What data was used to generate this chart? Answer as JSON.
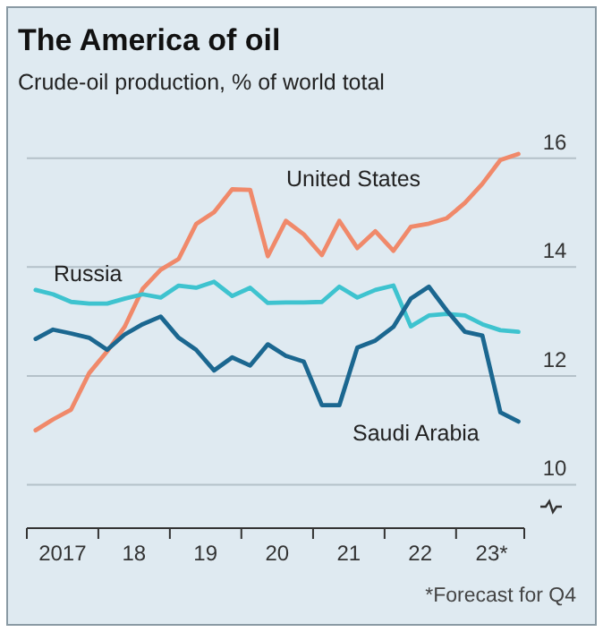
{
  "chart_data": {
    "type": "line",
    "title": "The America of oil",
    "subtitle": "Crude-oil production, % of world total",
    "x": [
      "2017-02-15",
      "2017-05-15",
      "2017-08-15",
      "2017-11-15",
      "2018-02-15",
      "2018-05-15",
      "2018-08-15",
      "2018-11-15",
      "2019-02-15",
      "2019-05-15",
      "2019-08-15",
      "2019-11-15",
      "2020-02-15",
      "2020-05-15",
      "2020-08-15",
      "2020-11-15",
      "2021-02-15",
      "2021-05-15",
      "2021-08-15",
      "2021-11-15",
      "2022-02-15",
      "2022-05-15",
      "2022-08-15",
      "2022-11-15",
      "2023-02-15",
      "2023-05-15",
      "2023-08-15",
      "2023-11-15"
    ],
    "series": [
      {
        "name": "United States",
        "color": "#f0896a",
        "values": [
          11.0,
          11.2,
          11.38,
          12.05,
          12.45,
          12.9,
          13.6,
          13.95,
          14.15,
          14.79,
          15.01,
          15.43,
          15.42,
          14.2,
          14.85,
          14.6,
          14.22,
          14.85,
          14.35,
          14.66,
          14.3,
          14.74,
          14.8,
          14.9,
          15.18,
          15.53,
          15.97,
          16.08
        ]
      },
      {
        "name": "Russia",
        "color": "#3ec3cf",
        "values": [
          13.58,
          13.5,
          13.36,
          13.33,
          13.33,
          13.42,
          13.5,
          13.44,
          13.66,
          13.62,
          13.73,
          13.47,
          13.62,
          13.34,
          13.35,
          13.35,
          13.36,
          13.64,
          13.44,
          13.58,
          13.66,
          12.91,
          13.11,
          13.14,
          13.11,
          12.95,
          12.84,
          12.81
        ]
      },
      {
        "name": "Saudi Arabia",
        "color": "#1b6790",
        "values": [
          12.68,
          12.85,
          12.78,
          12.7,
          12.48,
          12.76,
          12.95,
          13.09,
          12.7,
          12.48,
          12.1,
          12.34,
          12.19,
          12.58,
          12.37,
          12.26,
          11.46,
          11.46,
          12.52,
          12.65,
          12.9,
          13.42,
          13.64,
          13.2,
          12.81,
          12.74,
          11.33,
          11.16
        ]
      }
    ],
    "xlim": [
      "2017-01-01",
      "2023-12-15"
    ],
    "xticks": [
      {
        "value": "2017-01-01",
        "label": null
      },
      {
        "value": "2017-07-02",
        "label": "2017"
      },
      {
        "value": "2018-01-01",
        "label": null
      },
      {
        "value": "2018-07-02",
        "label": "18"
      },
      {
        "value": "2019-01-01",
        "label": null
      },
      {
        "value": "2019-07-02",
        "label": "19"
      },
      {
        "value": "2020-01-01",
        "label": null
      },
      {
        "value": "2020-07-02",
        "label": "20"
      },
      {
        "value": "2021-01-01",
        "label": null
      },
      {
        "value": "2021-07-02",
        "label": "21"
      },
      {
        "value": "2022-01-01",
        "label": null
      },
      {
        "value": "2022-07-02",
        "label": "22"
      },
      {
        "value": "2023-01-01",
        "label": null
      },
      {
        "value": "2023-07-02",
        "label": "23*"
      },
      {
        "value": "2023-12-15",
        "label": null
      }
    ],
    "ylim": [
      9.2,
      16.08
    ],
    "yticks": [
      10,
      12,
      14,
      16
    ],
    "grid": "y",
    "annotations": [
      "*Forecast for Q4"
    ]
  }
}
